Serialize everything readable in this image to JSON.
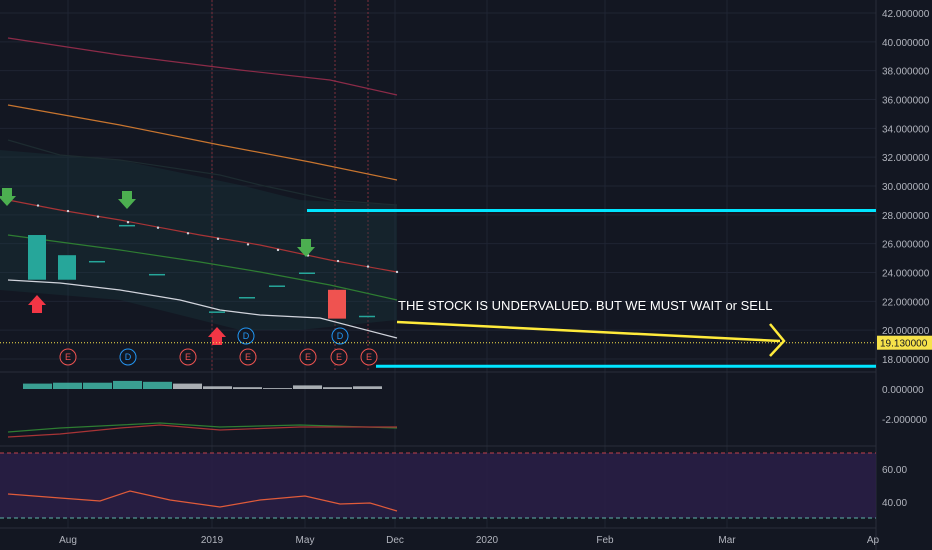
{
  "chart_data": {
    "type": "candlestick",
    "price_axis": {
      "ticks": [
        "42.000000",
        "40.000000",
        "38.000000",
        "36.000000",
        "34.000000",
        "32.000000",
        "30.000000",
        "28.000000",
        "26.000000",
        "24.000000",
        "22.000000",
        "20.000000",
        "18.000000"
      ],
      "range": [
        17,
        42.7
      ]
    },
    "macd_axis": {
      "ticks": [
        "0.000000",
        "-2.000000"
      ]
    },
    "rsi_axis": {
      "ticks": [
        "60.00",
        "40.00"
      ],
      "band": [
        30,
        70
      ]
    },
    "time_axis": {
      "ticks": [
        "Aug",
        "2019",
        "May",
        "Dec",
        "2020",
        "Feb",
        "Mar",
        "Ap"
      ]
    },
    "current_price": {
      "value": 19.13,
      "label": "19.130000",
      "color": "#f7e34a"
    },
    "candles": [
      {
        "o": 23.5,
        "c": 26.6,
        "h": 26.6,
        "l": 23.5,
        "color": "#26a69a"
      },
      {
        "o": 23.5,
        "c": 25.2,
        "h": 25.2,
        "l": 23.5,
        "color": "#26a69a"
      },
      {
        "o": 24.8,
        "c": 24.8,
        "h": 24.8,
        "l": 24.8,
        "color": "#26a69a"
      },
      {
        "o": 27.3,
        "c": 27.3,
        "h": 27.3,
        "l": 27.3,
        "color": "#26a69a"
      },
      {
        "o": 23.9,
        "c": 23.9,
        "h": 23.9,
        "l": 23.9,
        "color": "#26a69a"
      },
      {
        "o": 21.3,
        "c": 21.3,
        "h": 21.3,
        "l": 21.3,
        "color": "#26a69a"
      },
      {
        "o": 22.3,
        "c": 22.3,
        "h": 22.3,
        "l": 22.3,
        "color": "#26a69a"
      },
      {
        "o": 23.1,
        "c": 23.1,
        "h": 23.1,
        "l": 23.1,
        "color": "#26a69a"
      },
      {
        "o": 24.0,
        "c": 24.0,
        "h": 24.0,
        "l": 24.0,
        "color": "#26a69a"
      },
      {
        "o": 22.8,
        "c": 20.8,
        "h": 22.8,
        "l": 20.8,
        "color": "#ef5350"
      },
      {
        "o": 21.0,
        "c": 21.0,
        "h": 21.0,
        "l": 21.0,
        "color": "#26a69a"
      }
    ],
    "horizontal_levels": [
      {
        "value": 28.3,
        "color": "#00e5ff"
      },
      {
        "value": 17.5,
        "color": "#00e5ff"
      }
    ],
    "annotation": {
      "text": "THE STOCK IS UNDERVALUED. BUT WE MUST WAIT or SELL",
      "arrow_color": "#ffeb3b"
    },
    "events": [
      {
        "label": "E",
        "color": "#ef5350"
      },
      {
        "label": "D",
        "color": "#2196f3"
      },
      {
        "label": "E",
        "color": "#ef5350"
      },
      {
        "label": "E",
        "color": "#ef5350"
      },
      {
        "label": "E",
        "color": "#ef5350"
      },
      {
        "label": "E",
        "color": "#ef5350"
      },
      {
        "label": "E",
        "color": "#ef5350"
      },
      {
        "label": "D",
        "color": "#2196f3"
      },
      {
        "label": "D",
        "color": "#2196f3"
      }
    ]
  }
}
